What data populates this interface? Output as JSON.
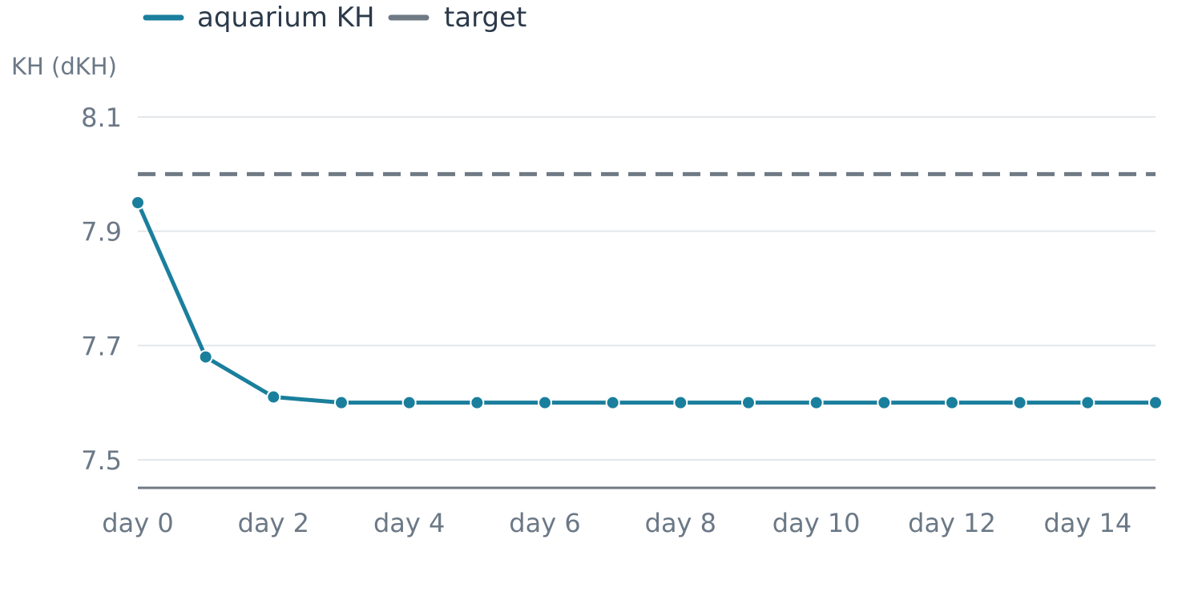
{
  "chart_data": {
    "type": "line",
    "ylabel": "KH (dKH)",
    "xlabel": "",
    "title": "",
    "ylim": [
      7.45,
      8.15
    ],
    "y_ticks": [
      7.5,
      7.7,
      7.9,
      8.1
    ],
    "y_tick_labels": [
      "7.5",
      "7.7",
      "7.9",
      "8.1"
    ],
    "x": [
      0,
      1,
      2,
      3,
      4,
      5,
      6,
      7,
      8,
      9,
      10,
      11,
      12,
      13,
      14,
      15
    ],
    "x_ticks": [
      0,
      2,
      4,
      6,
      8,
      10,
      12,
      14
    ],
    "x_tick_labels": [
      "day 0",
      "day 2",
      "day 4",
      "day 6",
      "day 8",
      "day 10",
      "day 12",
      "day 14"
    ],
    "grid": true,
    "legend_position": "top-left",
    "series": [
      {
        "name": "aquarium KH",
        "color": "#1a7f9c",
        "style": "solid-with-markers",
        "values": [
          7.95,
          7.68,
          7.61,
          7.6,
          7.6,
          7.6,
          7.6,
          7.6,
          7.6,
          7.6,
          7.6,
          7.6,
          7.6,
          7.6,
          7.6,
          7.6
        ]
      },
      {
        "name": "target",
        "color": "#6f7a85",
        "style": "dashed",
        "values": [
          8.0,
          8.0,
          8.0,
          8.0,
          8.0,
          8.0,
          8.0,
          8.0,
          8.0,
          8.0,
          8.0,
          8.0,
          8.0,
          8.0,
          8.0,
          8.0
        ]
      }
    ]
  }
}
